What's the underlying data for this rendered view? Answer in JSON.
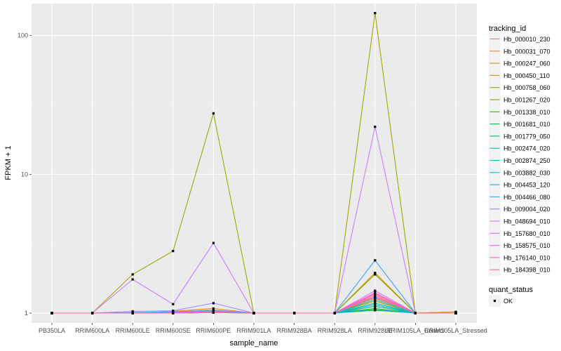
{
  "chart_data": {
    "type": "line",
    "xlabel": "sample_name",
    "ylabel": "FPKM + 1",
    "y_scale": "log10",
    "ylim": [
      0.85,
      170
    ],
    "yticks": [
      1,
      10,
      100
    ],
    "ytick_labels": [
      "1",
      "10",
      "100"
    ],
    "grid": true,
    "legend_position": "right",
    "categories": [
      "PB350LA",
      "RRIM600LA",
      "RRIM600LE",
      "RRIM600SE",
      "RRIM600PE",
      "RRIM901LA",
      "RRIM928BA",
      "RRIM928LA",
      "RRIM928LE",
      "RRIM105LA_Control",
      "RRIM105LA_Stressed"
    ],
    "legend_title": "tracking_id",
    "shape_legend": {
      "title": "quant_status",
      "items": [
        "OK"
      ]
    },
    "series": [
      {
        "name": "Hb_000010_230",
        "color": "#F8766D",
        "values": [
          1,
          1,
          1,
          1,
          1.02,
          1,
          1,
          1,
          1.35,
          1,
          1
        ]
      },
      {
        "name": "Hb_000031_070",
        "color": "#EA8331",
        "values": [
          1,
          1,
          1,
          1.02,
          1.05,
          1,
          1,
          1,
          1.28,
          1,
          1.02
        ]
      },
      {
        "name": "Hb_000247_060",
        "color": "#D89000",
        "values": [
          1,
          1,
          1,
          1.03,
          1.08,
          1,
          1,
          1,
          1.95,
          1,
          1.02
        ]
      },
      {
        "name": "Hb_000450_110",
        "color": "#C09B00",
        "values": [
          1,
          1,
          1,
          1.01,
          1.04,
          1,
          1,
          1,
          1.22,
          1,
          1
        ]
      },
      {
        "name": "Hb_000758_060",
        "color": "#A3A500",
        "values": [
          1,
          1,
          1.9,
          2.8,
          27.5,
          1,
          1,
          1,
          145,
          1,
          1
        ]
      },
      {
        "name": "Hb_001267_020",
        "color": "#7CAE00",
        "values": [
          1,
          1,
          1,
          1.01,
          1.02,
          1,
          1,
          1,
          1.9,
          1,
          1
        ]
      },
      {
        "name": "Hb_001338_010",
        "color": "#39B600",
        "values": [
          1,
          1,
          1,
          1,
          1.01,
          1,
          1,
          1,
          1.08,
          1,
          1
        ]
      },
      {
        "name": "Hb_001681_010",
        "color": "#00BB4E",
        "values": [
          1,
          1,
          1,
          1,
          1.02,
          1,
          1,
          1,
          1.05,
          1,
          1
        ]
      },
      {
        "name": "Hb_001779_050",
        "color": "#00BF7D",
        "values": [
          1,
          1,
          1,
          1,
          1.01,
          1,
          1,
          1,
          1.12,
          1,
          1
        ]
      },
      {
        "name": "Hb_002474_020",
        "color": "#00C1A3",
        "values": [
          1,
          1,
          1,
          1.01,
          1.03,
          1,
          1,
          1,
          1.18,
          1,
          1
        ]
      },
      {
        "name": "Hb_002874_250",
        "color": "#00BFC4",
        "values": [
          1,
          1,
          1,
          1,
          1.02,
          1,
          1,
          1,
          1.25,
          1,
          1
        ]
      },
      {
        "name": "Hb_003882_030",
        "color": "#00BAE0",
        "values": [
          1,
          1,
          1,
          1,
          1.01,
          1,
          1,
          1,
          1.15,
          1,
          1
        ]
      },
      {
        "name": "Hb_004453_120",
        "color": "#00B0F6",
        "values": [
          1,
          1,
          1,
          1,
          1.02,
          1,
          1,
          1,
          1.06,
          1,
          1
        ]
      },
      {
        "name": "Hb_004466_080",
        "color": "#35A2FF",
        "values": [
          1,
          1,
          1.01,
          1.02,
          1.05,
          1,
          1,
          1,
          2.4,
          1,
          1
        ]
      },
      {
        "name": "Hb_009004_020",
        "color": "#9590FF",
        "values": [
          1,
          1,
          1.03,
          1.04,
          1.18,
          1,
          1,
          1,
          1.3,
          1,
          1
        ]
      },
      {
        "name": "Hb_048694_010",
        "color": "#C77CFF",
        "values": [
          1,
          1,
          1.75,
          1.16,
          3.2,
          1,
          1,
          1,
          22,
          1,
          1
        ]
      },
      {
        "name": "Hb_157680_010",
        "color": "#E76BF3",
        "values": [
          1,
          1,
          1,
          1.01,
          1.03,
          1,
          1,
          1,
          1.45,
          1,
          1
        ]
      },
      {
        "name": "Hb_158575_010",
        "color": "#FA62DB",
        "values": [
          1,
          1,
          1,
          1,
          1.02,
          1,
          1,
          1,
          1.4,
          1,
          1
        ]
      },
      {
        "name": "Hb_176140_010",
        "color": "#FF62BC",
        "values": [
          1,
          1,
          1,
          1,
          1.01,
          1,
          1,
          1,
          1.38,
          1,
          1
        ]
      },
      {
        "name": "Hb_184398_010",
        "color": "#FF6C91",
        "values": [
          1,
          1,
          1,
          1,
          1.01,
          1,
          1,
          1,
          1.32,
          1,
          1
        ]
      }
    ]
  }
}
